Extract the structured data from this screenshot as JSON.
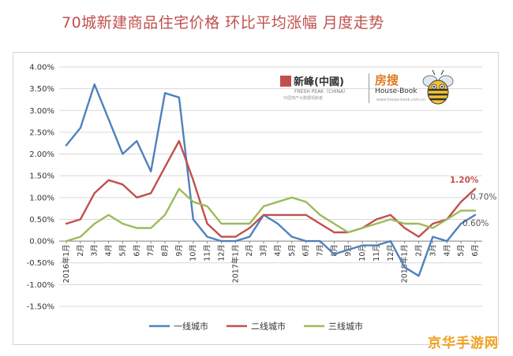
{
  "title": "70城新建商品住宅价格 环比平均涨幅 月度走势",
  "logo": {
    "brand_cn": "新峰(中國)",
    "brand_en": "FRESH PEAK（CHINA）",
    "brand_tagline": "中国地产大数据领航者",
    "partner_cn": "房搜",
    "partner_en": "House-Book",
    "partner_url": "www.house-book.com.cn"
  },
  "watermark": "京华手游网",
  "colors": {
    "tier1": "#4f81bd",
    "tier2": "#c0504d",
    "tier3": "#9bbb59",
    "grid": "#d9d9d9",
    "axis_text": "#333333"
  },
  "chart_data": {
    "type": "line",
    "title": "70城新建商品住宅价格 环比平均涨幅 月度走势",
    "ylim": [
      -1.5,
      4.0
    ],
    "yticks": [
      "4.00%",
      "3.50%",
      "3.00%",
      "2.50%",
      "2.00%",
      "1.50%",
      "1.00%",
      "0.50%",
      "0.00%",
      "-0.50%",
      "-1.00%",
      "-1.50%"
    ],
    "categories": [
      "2016年1月",
      "2月",
      "3月",
      "4月",
      "5月",
      "6月",
      "7月",
      "8月",
      "9月",
      "10月",
      "11月",
      "12月",
      "2017年1月",
      "2月",
      "3月",
      "4月",
      "5月",
      "6月",
      "7月",
      "8月",
      "9月",
      "10月",
      "11月",
      "12月",
      "2018年1月",
      "2月",
      "3月",
      "4月",
      "5月",
      "6月"
    ],
    "grid": true,
    "legend_position": "bottom",
    "series": [
      {
        "name": "一线城市",
        "color": "#4f81bd",
        "values": [
          2.2,
          2.6,
          3.6,
          2.8,
          2.0,
          2.3,
          1.6,
          3.4,
          3.3,
          0.5,
          0.1,
          0.0,
          0.0,
          0.1,
          0.6,
          0.4,
          0.1,
          0.0,
          0.0,
          -0.3,
          -0.2,
          -0.1,
          -0.1,
          0.0,
          -0.6,
          -0.8,
          0.1,
          0.0,
          0.4,
          0.6
        ]
      },
      {
        "name": "二线城市",
        "color": "#c0504d",
        "values": [
          0.4,
          0.5,
          1.1,
          1.4,
          1.3,
          1.0,
          1.1,
          1.7,
          2.3,
          1.4,
          0.4,
          0.1,
          0.1,
          0.3,
          0.6,
          0.6,
          0.6,
          0.6,
          0.4,
          0.2,
          0.2,
          0.3,
          0.5,
          0.6,
          0.3,
          0.1,
          0.4,
          0.5,
          0.9,
          1.2
        ]
      },
      {
        "name": "三线城市",
        "color": "#9bbb59",
        "values": [
          0.0,
          0.1,
          0.4,
          0.6,
          0.4,
          0.3,
          0.3,
          0.6,
          1.2,
          0.9,
          0.8,
          0.4,
          0.4,
          0.4,
          0.8,
          0.9,
          1.0,
          0.9,
          0.6,
          0.4,
          0.2,
          0.3,
          0.4,
          0.5,
          0.4,
          0.4,
          0.3,
          0.5,
          0.7,
          0.7
        ]
      }
    ],
    "annotations": [
      {
        "series": "二线城市",
        "index": 29,
        "label": "1.20%"
      },
      {
        "series": "三线城市",
        "index": 29,
        "label": "0.70%"
      },
      {
        "series": "一线城市",
        "index": 29,
        "label": "0.60%"
      }
    ]
  }
}
